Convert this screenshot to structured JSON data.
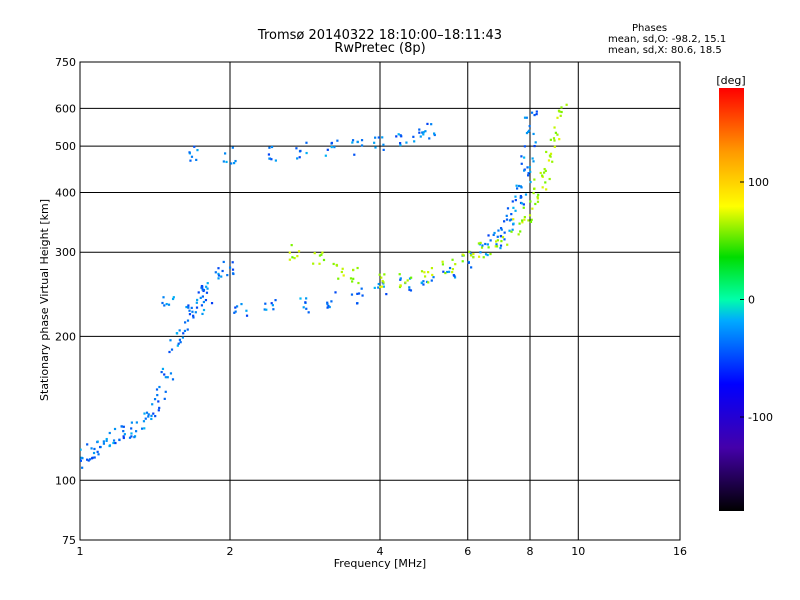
{
  "chart_data": {
    "type": "scatter",
    "title": "Tromsø 20140322 18:10:00–18:11:43",
    "subtitle": "RwPretec (8p)",
    "xlabel": "Frequency [MHz]",
    "ylabel": "Stationary phase Virtual Height [km]",
    "x_scale": "log",
    "y_scale": "log",
    "xlim": [
      1,
      16
    ],
    "ylim": [
      75,
      750
    ],
    "x_ticks": [
      1,
      2,
      4,
      6,
      8,
      10,
      16
    ],
    "y_ticks": [
      75,
      100,
      200,
      300,
      400,
      500,
      600,
      750
    ],
    "grid": true,
    "colorbar": {
      "label": "[deg]",
      "range": [
        -180,
        180
      ],
      "ticks": [
        100,
        0,
        -100
      ]
    },
    "phase_stats": {
      "heading": "Phases",
      "o_line": "mean, sd,O: -98.2, 15.1",
      "x_line": "mean, sd,X:  80.6, 18.5"
    },
    "series": [
      {
        "trace": "low-ionosphere",
        "points": [
          [
            1.0,
            110
          ],
          [
            1.03,
            112
          ],
          [
            1.06,
            115
          ],
          [
            1.1,
            118
          ],
          [
            1.15,
            122
          ],
          [
            1.2,
            126
          ],
          [
            1.25,
            127
          ],
          [
            1.3,
            128
          ],
          [
            1.35,
            133
          ],
          [
            1.4,
            140
          ],
          [
            1.45,
            152
          ],
          [
            1.5,
            168
          ],
          [
            1.55,
            190
          ],
          [
            1.6,
            205
          ],
          [
            1.65,
            222
          ],
          [
            1.7,
            230
          ],
          [
            1.75,
            245
          ],
          [
            1.8,
            258
          ],
          [
            1.9,
            270
          ],
          [
            2.0,
            280
          ]
        ],
        "phase": -100
      },
      {
        "trace": "F-trace-o",
        "points": [
          [
            1.5,
            236
          ],
          [
            1.8,
            232
          ],
          [
            2.1,
            230
          ],
          [
            2.4,
            231
          ],
          [
            2.8,
            234
          ],
          [
            3.2,
            238
          ],
          [
            3.6,
            243
          ],
          [
            4.0,
            250
          ],
          [
            4.5,
            258
          ],
          [
            5.0,
            265
          ],
          [
            5.5,
            275
          ],
          [
            6.0,
            290
          ],
          [
            6.5,
            305
          ],
          [
            6.8,
            318
          ],
          [
            7.0,
            330
          ],
          [
            7.2,
            345
          ],
          [
            7.4,
            360
          ],
          [
            7.6,
            380
          ],
          [
            7.7,
            400
          ],
          [
            7.8,
            430
          ],
          [
            7.9,
            470
          ],
          [
            8.0,
            520
          ],
          [
            8.05,
            570
          ]
        ],
        "phase": -100
      },
      {
        "trace": "F-trace-x",
        "points": [
          [
            2.7,
            300
          ],
          [
            3.0,
            290
          ],
          [
            3.3,
            275
          ],
          [
            3.6,
            268
          ],
          [
            4.0,
            260
          ],
          [
            4.5,
            262
          ],
          [
            5.0,
            268
          ],
          [
            5.5,
            280
          ],
          [
            6.0,
            292
          ],
          [
            6.5,
            305
          ],
          [
            7.0,
            320
          ],
          [
            7.5,
            340
          ],
          [
            7.9,
            360
          ],
          [
            8.2,
            385
          ],
          [
            8.4,
            410
          ],
          [
            8.6,
            440
          ],
          [
            8.8,
            480
          ],
          [
            9.0,
            530
          ],
          [
            9.2,
            590
          ]
        ],
        "phase": 75
      },
      {
        "trace": "multiple-F",
        "points": [
          [
            1.7,
            480
          ],
          [
            2.0,
            478
          ],
          [
            2.4,
            485
          ],
          [
            2.8,
            490
          ],
          [
            3.2,
            495
          ],
          [
            3.6,
            500
          ],
          [
            4.0,
            510
          ],
          [
            4.4,
            520
          ],
          [
            4.8,
            530
          ],
          [
            5.0,
            540
          ]
        ],
        "phase": -100
      }
    ]
  }
}
